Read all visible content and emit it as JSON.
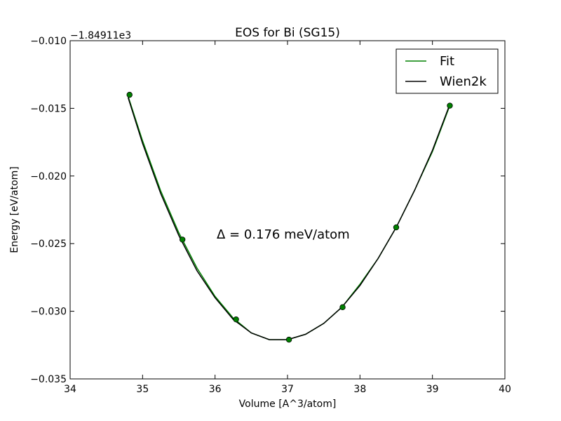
{
  "chart_data": {
    "type": "line",
    "title": "EOS for Bi (SG15)",
    "xlabel": "Volume [A^3/atom]",
    "ylabel": "Energy [eV/atom]",
    "xlim": [
      34,
      40
    ],
    "ylim": [
      -0.035,
      -0.01
    ],
    "x_ticks": [
      34,
      35,
      36,
      37,
      38,
      39,
      40
    ],
    "x_tick_labels": [
      "34",
      "35",
      "36",
      "37",
      "38",
      "39",
      "40"
    ],
    "y_ticks": [
      -0.035,
      -0.03,
      -0.025,
      -0.02,
      -0.015,
      -0.01
    ],
    "y_tick_labels": [
      "−0.035",
      "−0.030",
      "−0.025",
      "−0.020",
      "−0.015",
      "−0.010"
    ],
    "y_offset_text": "−1.84911e3",
    "grid": false,
    "legend_position": "top-right",
    "annotation": "Δ = 0.176 meV/atom",
    "points": {
      "color": "#008000",
      "edge_color": "#000000",
      "x": [
        34.82,
        35.55,
        36.29,
        37.02,
        37.76,
        38.5,
        39.24
      ],
      "y": [
        -0.014,
        -0.0247,
        -0.0306,
        -0.0321,
        -0.0297,
        -0.0238,
        -0.0148
      ]
    },
    "series": [
      {
        "name": "Fit",
        "color": "#008000",
        "x": [
          34.8,
          35.0,
          35.25,
          35.5,
          35.75,
          36.0,
          36.25,
          36.5,
          36.75,
          37.0,
          37.25,
          37.5,
          37.75,
          38.0,
          38.25,
          38.5,
          38.75,
          39.0,
          39.24
        ],
        "y": [
          -0.0141,
          -0.0174,
          -0.0211,
          -0.0242,
          -0.0268,
          -0.0289,
          -0.0305,
          -0.0316,
          -0.0321,
          -0.0321,
          -0.0317,
          -0.0309,
          -0.0297,
          -0.028,
          -0.0261,
          -0.0238,
          -0.0211,
          -0.0182,
          -0.0148
        ]
      },
      {
        "name": "Wien2k",
        "color": "#000000",
        "x": [
          34.8,
          35.0,
          35.25,
          35.5,
          35.75,
          36.0,
          36.25,
          36.5,
          36.75,
          37.0,
          37.25,
          37.5,
          37.75,
          38.0,
          38.25,
          38.5,
          38.75,
          39.0,
          39.24
        ],
        "y": [
          -0.0142,
          -0.0176,
          -0.0213,
          -0.0244,
          -0.027,
          -0.029,
          -0.0306,
          -0.0316,
          -0.0321,
          -0.0321,
          -0.0317,
          -0.0309,
          -0.0297,
          -0.0281,
          -0.0261,
          -0.0238,
          -0.0211,
          -0.0181,
          -0.0147
        ]
      }
    ]
  }
}
